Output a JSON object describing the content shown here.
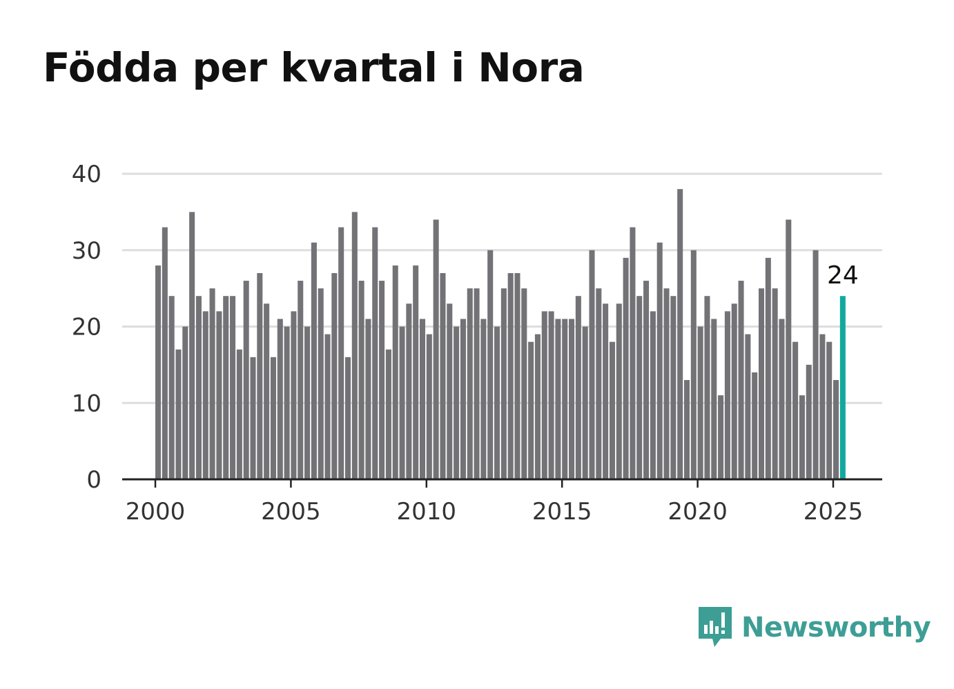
{
  "title": "Födda per kvartal i Nora",
  "brand": {
    "name": "Newsworthy",
    "color": "#3d9e95",
    "icon": "newsworthy-logo-icon"
  },
  "colors": {
    "bar": "#737277",
    "highlight": "#13a89e",
    "grid": "#dddddd",
    "axis": "#222222",
    "tick_text": "#333333"
  },
  "chart_data": {
    "type": "bar",
    "title": "Födda per kvartal i Nora",
    "xlabel": "",
    "ylabel": "",
    "ylim": [
      0,
      40
    ],
    "yticks": [
      0,
      10,
      20,
      30,
      40
    ],
    "xticks": [
      2000,
      2005,
      2010,
      2015,
      2020,
      2025
    ],
    "x_start": "2000-Q1",
    "x_end": "2025-Q2",
    "grid": true,
    "values": [
      28,
      33,
      24,
      17,
      20,
      35,
      24,
      22,
      25,
      22,
      24,
      24,
      17,
      26,
      16,
      27,
      23,
      16,
      21,
      20,
      22,
      26,
      20,
      31,
      25,
      19,
      27,
      33,
      16,
      35,
      26,
      21,
      33,
      26,
      17,
      28,
      20,
      23,
      28,
      21,
      19,
      34,
      27,
      23,
      20,
      21,
      25,
      25,
      21,
      30,
      20,
      25,
      27,
      27,
      25,
      18,
      19,
      22,
      22,
      21,
      21,
      21,
      24,
      20,
      30,
      25,
      23,
      18,
      23,
      29,
      33,
      24,
      26,
      22,
      31,
      25,
      24,
      38,
      13,
      30,
      20,
      24,
      21,
      11,
      22,
      23,
      26,
      19,
      14,
      25,
      29,
      25,
      21,
      34,
      18,
      11,
      15,
      30,
      19,
      18,
      13,
      24
    ],
    "highlight_index": 101,
    "annotation": "24"
  }
}
